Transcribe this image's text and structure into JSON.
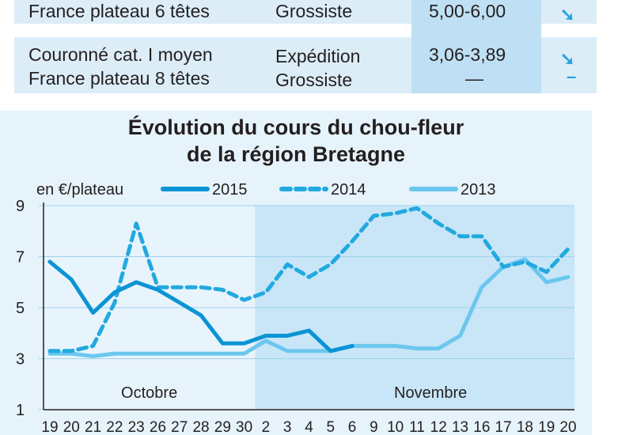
{
  "table": {
    "rows": [
      {
        "product": [
          "France plateau 6 têtes"
        ],
        "stage": [
          "Grossiste"
        ],
        "price": [
          "5,00-6,00"
        ],
        "trend": [
          "down"
        ]
      },
      {
        "product": [
          "Couronné cat. I moyen",
          "France plateau 8 têtes"
        ],
        "stage": [
          "Expédition",
          "Grossiste"
        ],
        "price": [
          "3,06-3,89",
          "—"
        ],
        "trend": [
          "down",
          "stable"
        ]
      }
    ]
  },
  "colors": {
    "s2015": "#0a94d4",
    "s2014": "#22a9e0",
    "s2013": "#6cc7ee",
    "trend": "#29a3dc"
  },
  "chart_data": {
    "type": "line",
    "title": [
      "Évolution du cours du chou-fleur",
      "de la région Bretagne"
    ],
    "unit_label": "en €/plateau",
    "ylim": [
      1,
      9
    ],
    "yticks": [
      "1",
      "3",
      "5",
      "7",
      "9"
    ],
    "categories": [
      "19",
      "20",
      "21",
      "22",
      "23",
      "26",
      "27",
      "28",
      "29",
      "30",
      "2",
      "3",
      "4",
      "5",
      "6",
      "9",
      "10",
      "11",
      "12",
      "13",
      "16",
      "17",
      "18",
      "19",
      "20"
    ],
    "months": [
      "Octobre",
      "Novembre"
    ],
    "month_start_index": [
      0,
      10
    ],
    "series": [
      {
        "name": "2015",
        "style": "solid",
        "values": [
          6.8,
          6.1,
          4.8,
          5.6,
          6.0,
          5.7,
          5.2,
          4.7,
          3.6,
          3.6,
          3.9,
          3.9,
          4.1,
          3.3,
          3.5,
          null,
          null,
          null,
          null,
          null,
          null,
          null,
          null,
          null,
          null
        ]
      },
      {
        "name": "2014",
        "style": "dashed",
        "values": [
          3.3,
          3.3,
          3.5,
          5.2,
          8.3,
          5.8,
          5.8,
          5.8,
          5.7,
          5.3,
          5.6,
          6.7,
          6.2,
          6.7,
          7.6,
          8.6,
          8.7,
          8.9,
          8.3,
          7.8,
          7.8,
          6.6,
          6.8,
          6.4,
          7.3
        ]
      },
      {
        "name": "2013",
        "style": "light",
        "values": [
          3.2,
          3.2,
          3.1,
          3.2,
          3.2,
          3.2,
          3.2,
          3.2,
          3.2,
          3.2,
          3.7,
          3.3,
          3.3,
          3.3,
          3.5,
          3.5,
          3.5,
          3.4,
          3.4,
          3.9,
          5.8,
          6.6,
          6.9,
          6.0,
          6.2
        ]
      }
    ]
  }
}
